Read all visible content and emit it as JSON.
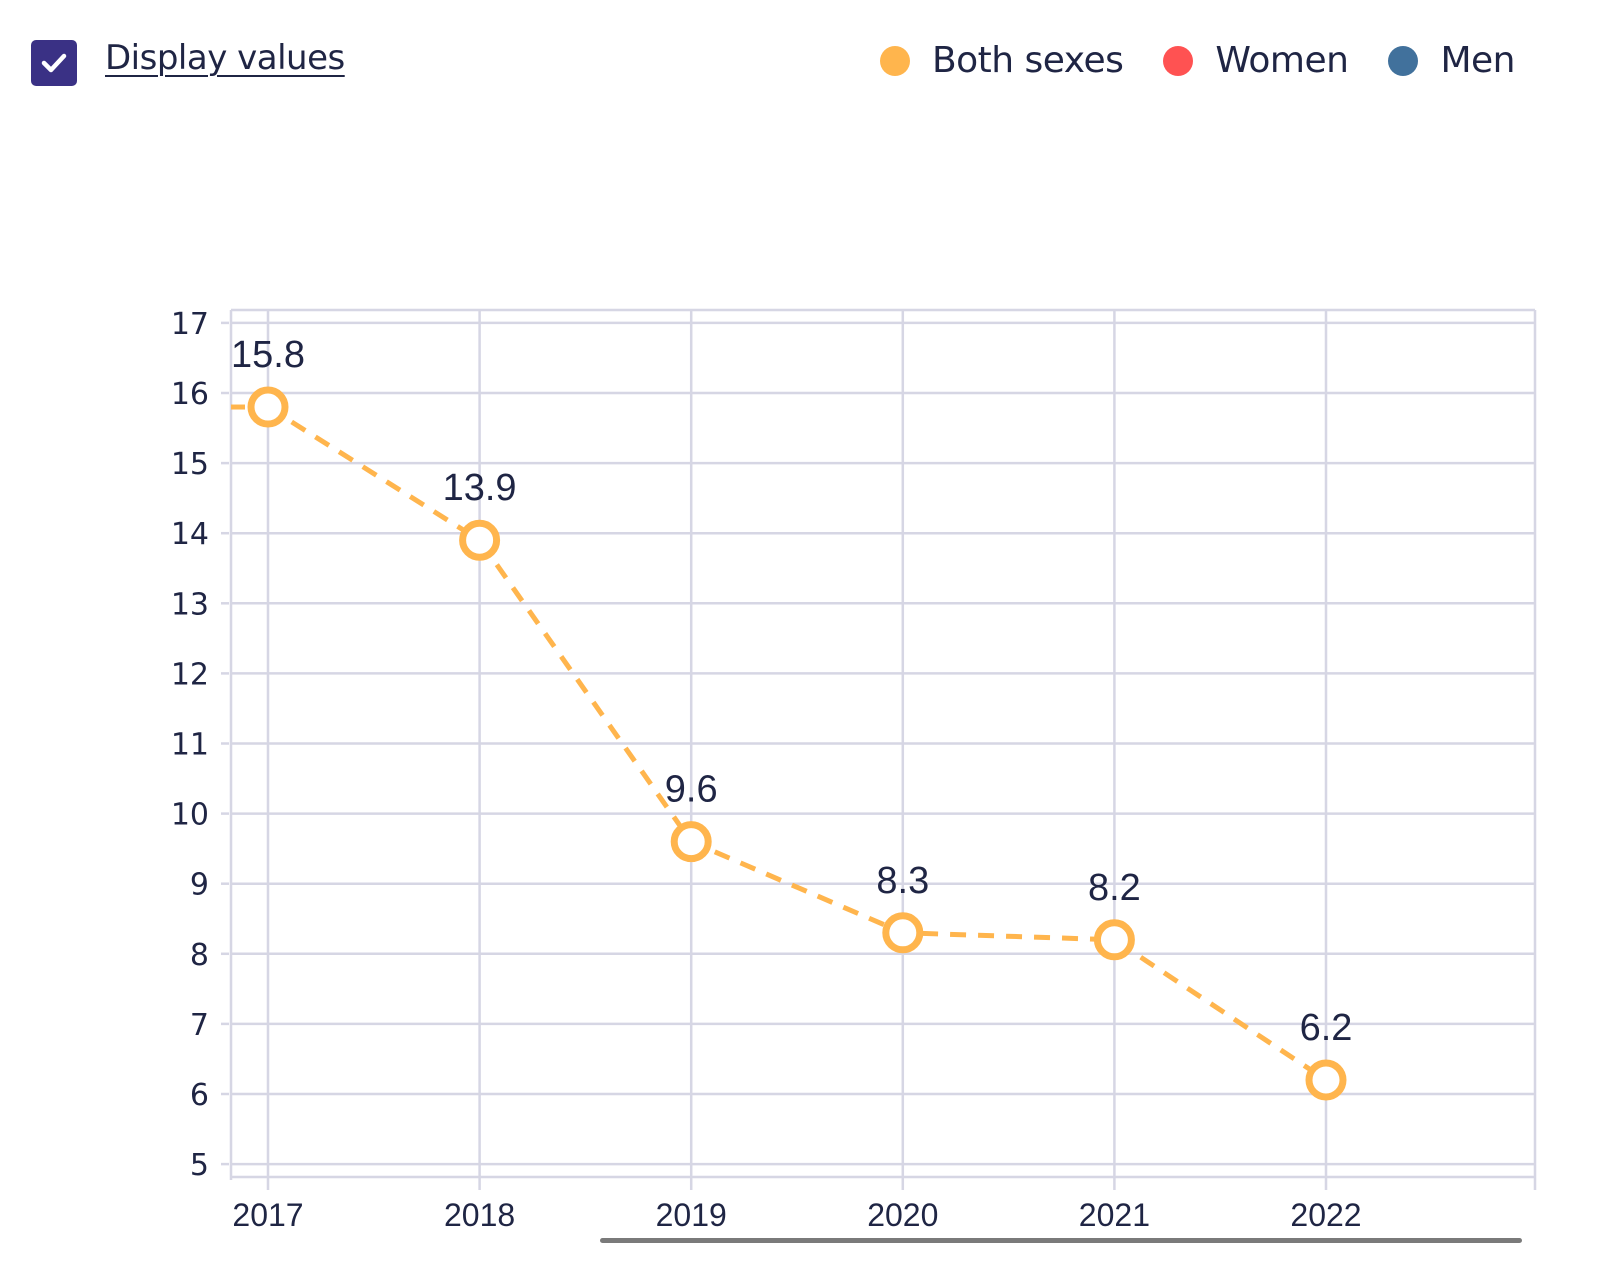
{
  "controls": {
    "display_values_label": "Display values",
    "display_values_checked": true,
    "checkbox_color": "#3a3185"
  },
  "legend": [
    {
      "label": "Both sexes",
      "color": "#ffb54d"
    },
    {
      "label": "Women",
      "color": "#ff5252"
    },
    {
      "label": "Men",
      "color": "#41719c"
    }
  ],
  "chart_data": {
    "type": "line",
    "title": "",
    "xlabel": "",
    "ylabel": "",
    "x": [
      "2017",
      "2018",
      "2019",
      "2020",
      "2021",
      "2022"
    ],
    "series": [
      {
        "name": "Both sexes",
        "color": "#ffb54d",
        "line_style": "dashed",
        "marker": "hollow-circle",
        "values": [
          15.8,
          13.9,
          9.6,
          8.3,
          8.2,
          6.2
        ]
      }
    ],
    "value_labels": [
      "15.8",
      "13.9",
      "9.6",
      "8.3",
      "8.2",
      "6.2"
    ],
    "ylim": [
      5,
      17
    ],
    "yticks": [
      5,
      6,
      7,
      8,
      9,
      10,
      11,
      12,
      13,
      14,
      15,
      16,
      17
    ],
    "xticks": [
      "2017",
      "2018",
      "2019",
      "2020",
      "2021",
      "2022"
    ],
    "grid": true,
    "legend_position": "top-right",
    "grid_color": "#d6d6e4"
  }
}
